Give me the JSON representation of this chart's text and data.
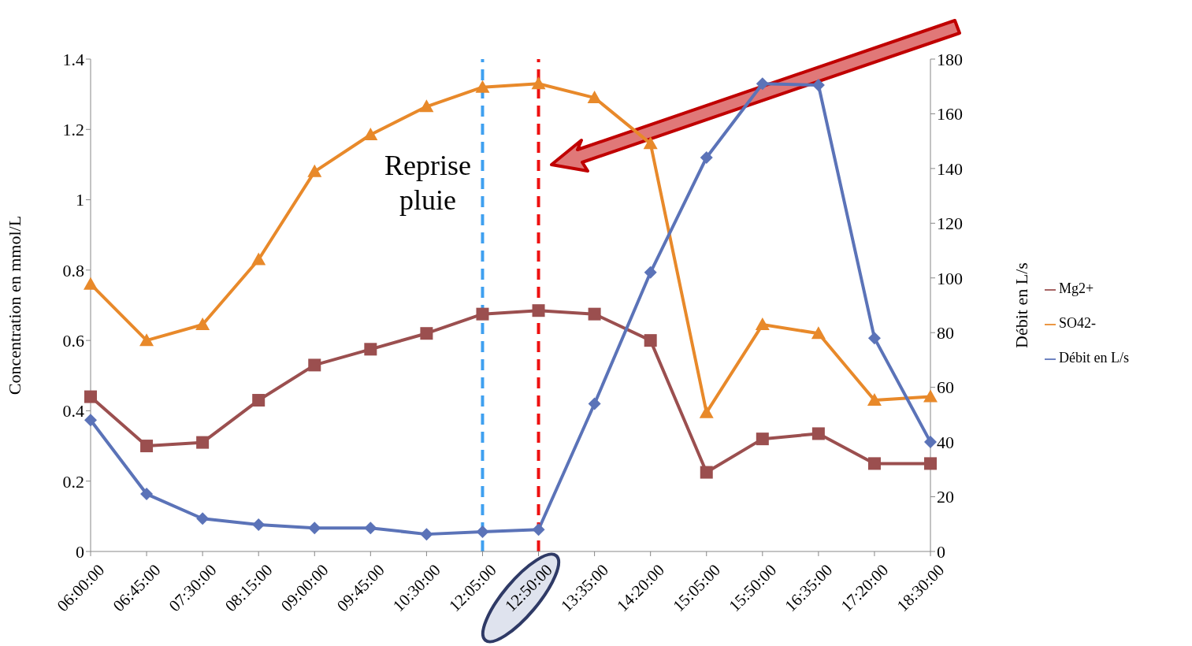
{
  "chart_data": {
    "type": "line",
    "categories": [
      "06:00:00",
      "06:45:00",
      "07:30:00",
      "08:15:00",
      "09:00:00",
      "09:45:00",
      "10:30:00",
      "12:05:00",
      "12:50:00",
      "13:35:00",
      "14:20:00",
      "15:05:00",
      "15:50:00",
      "16:35:00",
      "17:20:00",
      "18:30:00"
    ],
    "series": [
      {
        "name": "Mg2+",
        "color": "#9b4f4f",
        "marker": "square",
        "values": [
          0.44,
          0.3,
          0.31,
          0.43,
          0.53,
          0.575,
          0.62,
          0.675,
          0.685,
          0.675,
          0.6,
          0.225,
          0.32,
          0.335,
          0.25,
          0.25
        ]
      },
      {
        "name": "SO42-",
        "color": "#e8892a",
        "marker": "triangle",
        "values": [
          0.76,
          0.6,
          0.645,
          0.83,
          1.08,
          1.185,
          1.265,
          1.32,
          1.33,
          1.29,
          1.16,
          0.395,
          0.645,
          0.62,
          0.43,
          0.44
        ]
      },
      {
        "name": "Débit en L/s",
        "color": "#5b73b8",
        "marker": "diamond",
        "axis": "y2",
        "values": [
          48,
          21,
          12,
          9.8,
          8.6,
          8.6,
          6.3,
          7.2,
          8,
          54,
          102,
          144,
          171,
          170.5,
          78,
          40
        ]
      }
    ],
    "ylabel": "Concentration en mmol/L",
    "y2label": "Débit en L/s",
    "ylim": [
      0,
      1.4
    ],
    "yticks": [
      0,
      0.2,
      0.4,
      0.6,
      0.8,
      1,
      1.2,
      1.4
    ],
    "y2lim": [
      0,
      180
    ],
    "y2ticks": [
      0,
      20,
      40,
      60,
      80,
      100,
      120,
      140,
      160,
      180
    ],
    "ref_lines": [
      {
        "axis": "x",
        "value": "12:05:00",
        "color": "#3fa0f0",
        "line_style": "dashed"
      },
      {
        "axis": "x",
        "value": "12:50:00",
        "color": "#ee1111",
        "line_style": "dashed"
      }
    ],
    "annotations": [
      "Reprise pluie"
    ],
    "grid": false,
    "legend": "right"
  }
}
